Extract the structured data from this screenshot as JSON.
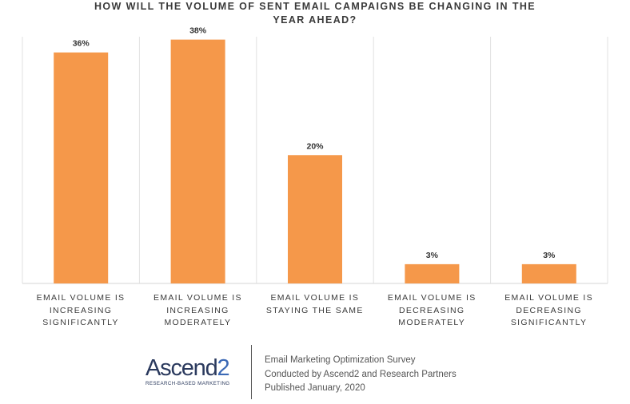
{
  "title_lines": [
    "HOW WILL THE VOLUME OF SENT EMAIL CAMPAIGNS BE CHANGING IN THE",
    "YEAR AHEAD?"
  ],
  "chart_data": {
    "type": "bar",
    "title": "HOW WILL THE VOLUME OF SENT EMAIL CAMPAIGNS BE CHANGING IN THE YEAR AHEAD?",
    "categories": [
      "EMAIL VOLUME IS INCREASING SIGNIFICANTLY",
      "EMAIL VOLUME IS INCREASING MODERATELY",
      "EMAIL VOLUME IS STAYING THE SAME",
      "EMAIL VOLUME IS DECREASING MODERATELY",
      "EMAIL VOLUME IS DECREASING SIGNIFICANTLY"
    ],
    "values": [
      36,
      38,
      20,
      3,
      3
    ],
    "value_labels": [
      "36%",
      "38%",
      "20%",
      "3%",
      "3%"
    ],
    "ylim": [
      0,
      40
    ],
    "bar_color": "#f5984a",
    "grid": false
  },
  "category_label_lines": [
    [
      "EMAIL VOLUME IS",
      "INCREASING",
      "SIGNIFICANTLY"
    ],
    [
      "EMAIL VOLUME IS",
      "INCREASING",
      "MODERATELY"
    ],
    [
      "EMAIL VOLUME IS",
      "STAYING THE SAME"
    ],
    [
      "EMAIL VOLUME IS",
      "DECREASING",
      "MODERATELY"
    ],
    [
      "EMAIL VOLUME IS",
      "DECREASING",
      "SIGNIFICANTLY"
    ]
  ],
  "footer": {
    "logo_text_main": "Ascend",
    "logo_text_num": "2",
    "logo_tagline": "RESEARCH-BASED MARKETING",
    "lines": [
      "Email Marketing Optimization Survey",
      "Conducted by Ascend2 and Research Partners",
      "Published January, 2020"
    ]
  }
}
